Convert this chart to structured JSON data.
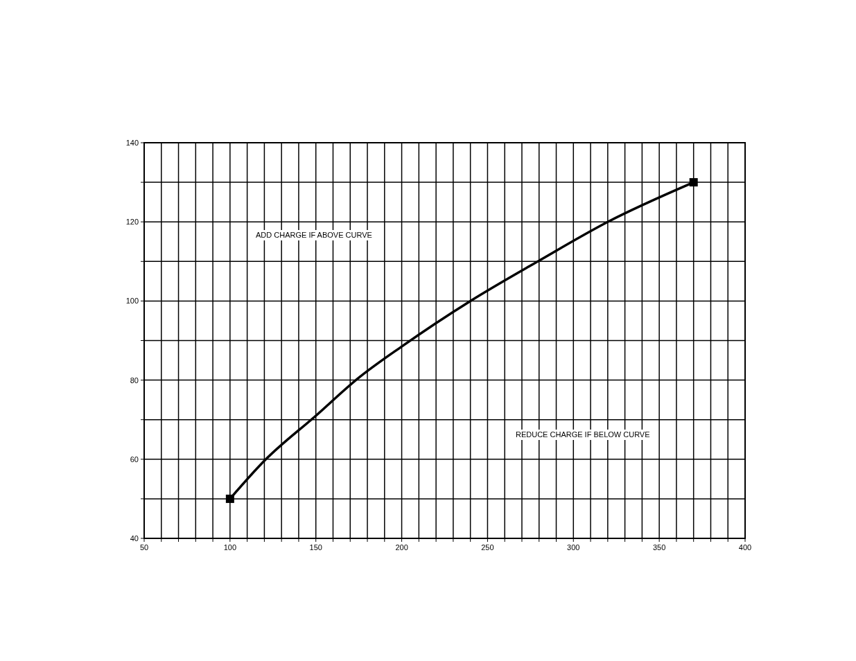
{
  "chart_data": {
    "type": "line",
    "xlim": [
      50,
      400
    ],
    "ylim": [
      40,
      140
    ],
    "xticks": [
      50,
      {
        "value": 60,
        "label": null
      },
      {
        "value": 70,
        "label": null
      },
      {
        "value": 80,
        "label": null
      },
      {
        "value": 90,
        "label": null
      },
      100,
      {
        "value": 110,
        "label": null
      },
      {
        "value": 120,
        "label": null
      },
      {
        "value": 130,
        "label": null
      },
      {
        "value": 140,
        "label": null
      },
      150,
      {
        "value": 160,
        "label": null
      },
      {
        "value": 170,
        "label": null
      },
      {
        "value": 180,
        "label": null
      },
      {
        "value": 190,
        "label": null
      },
      200,
      {
        "value": 210,
        "label": null
      },
      {
        "value": 220,
        "label": null
      },
      {
        "value": 230,
        "label": null
      },
      {
        "value": 240,
        "label": null
      },
      250,
      {
        "value": 260,
        "label": null
      },
      {
        "value": 270,
        "label": null
      },
      {
        "value": 280,
        "label": null
      },
      {
        "value": 290,
        "label": null
      },
      300,
      {
        "value": 310,
        "label": null
      },
      {
        "value": 320,
        "label": null
      },
      {
        "value": 330,
        "label": null
      },
      {
        "value": 340,
        "label": null
      },
      350,
      {
        "value": 360,
        "label": null
      },
      {
        "value": 370,
        "label": null
      },
      {
        "value": 380,
        "label": null
      },
      {
        "value": 390,
        "label": null
      },
      400
    ],
    "yticks": [
      40,
      {
        "value": 50,
        "label": null
      },
      60,
      {
        "value": 70,
        "label": null
      },
      80,
      {
        "value": 90,
        "label": null
      },
      100,
      {
        "value": 110,
        "label": null
      },
      120,
      {
        "value": 130,
        "label": null
      },
      140
    ],
    "grid": true,
    "series": [
      {
        "color": "#000000",
        "marker": "none",
        "x": [
          100,
          120,
          150,
          175,
          200,
          240,
          280,
          320,
          370
        ],
        "values": [
          50,
          59.6,
          71,
          80.6,
          88.5,
          100,
          110.2,
          120,
          130
        ]
      },
      {
        "type": "scatter",
        "color": "#000000",
        "marker": "square",
        "x": [
          100,
          370
        ],
        "values": [
          50,
          130
        ]
      }
    ],
    "annotations": [
      "ADD CHARGE IF ABOVE CURVE",
      "REDUCE CHARGE IF BELOW CURVE"
    ]
  }
}
